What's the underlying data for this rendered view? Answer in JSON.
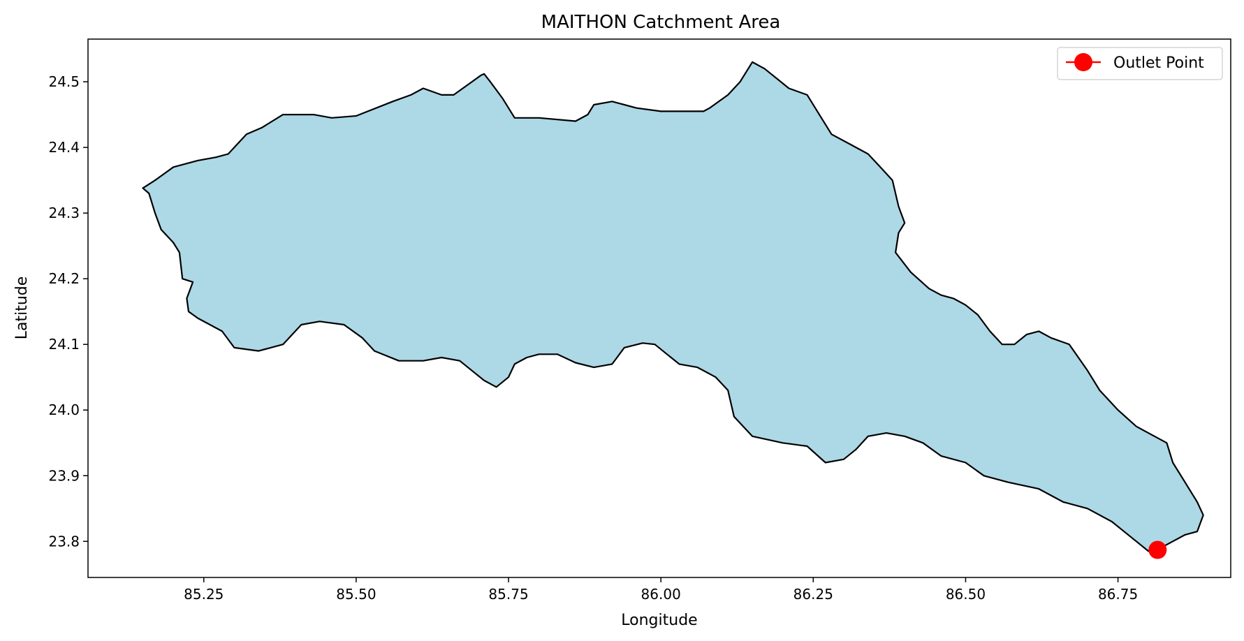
{
  "chart_data": {
    "type": "map",
    "title": "MAITHON Catchment Area",
    "xlabel": "Longitude",
    "ylabel": "Latitude",
    "xlim": [
      85.06,
      86.935
    ],
    "ylim": [
      23.745,
      24.565
    ],
    "x_ticks": [
      85.25,
      85.5,
      85.75,
      86.0,
      86.25,
      86.5,
      86.75
    ],
    "x_tick_labels": [
      "85.25",
      "85.50",
      "85.75",
      "86.00",
      "86.25",
      "86.50",
      "86.75"
    ],
    "y_ticks": [
      23.8,
      23.9,
      24.0,
      24.1,
      24.2,
      24.3,
      24.4,
      24.5
    ],
    "y_tick_labels": [
      "23.8",
      "23.9",
      "24.0",
      "24.1",
      "24.2",
      "24.3",
      "24.4",
      "24.5"
    ],
    "grid": false,
    "legend": {
      "position": "top-right",
      "entries": [
        {
          "label": "Outlet Point",
          "color": "#ff0000"
        }
      ]
    },
    "catchment": {
      "fill": "#add8e6",
      "stroke": "#000000",
      "boundary": [
        [
          85.15,
          24.338
        ],
        [
          85.17,
          24.35
        ],
        [
          85.2,
          24.37
        ],
        [
          85.24,
          24.38
        ],
        [
          85.27,
          24.385
        ],
        [
          85.29,
          24.39
        ],
        [
          85.32,
          24.42
        ],
        [
          85.345,
          24.43
        ],
        [
          85.38,
          24.45
        ],
        [
          85.43,
          24.45
        ],
        [
          85.46,
          24.445
        ],
        [
          85.5,
          24.448
        ],
        [
          85.56,
          24.47
        ],
        [
          85.59,
          24.48
        ],
        [
          85.61,
          24.49
        ],
        [
          85.64,
          24.48
        ],
        [
          85.66,
          24.48
        ],
        [
          85.69,
          24.5
        ],
        [
          85.705,
          24.51
        ],
        [
          85.71,
          24.512
        ],
        [
          85.72,
          24.5
        ],
        [
          85.74,
          24.475
        ],
        [
          85.76,
          24.445
        ],
        [
          85.8,
          24.445
        ],
        [
          85.86,
          24.44
        ],
        [
          85.88,
          24.45
        ],
        [
          85.89,
          24.465
        ],
        [
          85.92,
          24.47
        ],
        [
          85.96,
          24.46
        ],
        [
          86.0,
          24.455
        ],
        [
          86.04,
          24.455
        ],
        [
          86.07,
          24.455
        ],
        [
          86.08,
          24.46
        ],
        [
          86.11,
          24.48
        ],
        [
          86.13,
          24.5
        ],
        [
          86.15,
          24.53
        ],
        [
          86.17,
          24.52
        ],
        [
          86.19,
          24.505
        ],
        [
          86.21,
          24.49
        ],
        [
          86.24,
          24.48
        ],
        [
          86.26,
          24.45
        ],
        [
          86.28,
          24.42
        ],
        [
          86.31,
          24.405
        ],
        [
          86.34,
          24.39
        ],
        [
          86.36,
          24.37
        ],
        [
          86.38,
          24.35
        ],
        [
          86.39,
          24.31
        ],
        [
          86.4,
          24.285
        ],
        [
          86.39,
          24.27
        ],
        [
          86.385,
          24.24
        ],
        [
          86.41,
          24.21
        ],
        [
          86.44,
          24.185
        ],
        [
          86.46,
          24.175
        ],
        [
          86.48,
          24.17
        ],
        [
          86.5,
          24.16
        ],
        [
          86.52,
          24.145
        ],
        [
          86.54,
          24.12
        ],
        [
          86.56,
          24.1
        ],
        [
          86.58,
          24.1
        ],
        [
          86.6,
          24.115
        ],
        [
          86.62,
          24.12
        ],
        [
          86.64,
          24.11
        ],
        [
          86.67,
          24.1
        ],
        [
          86.7,
          24.06
        ],
        [
          86.72,
          24.03
        ],
        [
          86.75,
          24.0
        ],
        [
          86.78,
          23.975
        ],
        [
          86.81,
          23.96
        ],
        [
          86.83,
          23.95
        ],
        [
          86.84,
          23.92
        ],
        [
          86.86,
          23.89
        ],
        [
          86.88,
          23.86
        ],
        [
          86.89,
          23.84
        ],
        [
          86.88,
          23.815
        ],
        [
          86.86,
          23.81
        ],
        [
          86.84,
          23.8
        ],
        [
          86.82,
          23.79
        ],
        [
          86.8,
          23.785
        ],
        [
          86.78,
          23.8
        ],
        [
          86.76,
          23.815
        ],
        [
          86.74,
          23.83
        ],
        [
          86.7,
          23.85
        ],
        [
          86.66,
          23.86
        ],
        [
          86.62,
          23.88
        ],
        [
          86.57,
          23.89
        ],
        [
          86.53,
          23.9
        ],
        [
          86.5,
          23.92
        ],
        [
          86.46,
          23.93
        ],
        [
          86.43,
          23.95
        ],
        [
          86.4,
          23.96
        ],
        [
          86.37,
          23.965
        ],
        [
          86.34,
          23.96
        ],
        [
          86.32,
          23.94
        ],
        [
          86.3,
          23.925
        ],
        [
          86.27,
          23.92
        ],
        [
          86.24,
          23.945
        ],
        [
          86.2,
          23.95
        ],
        [
          86.15,
          23.96
        ],
        [
          86.12,
          23.99
        ],
        [
          86.11,
          24.03
        ],
        [
          86.09,
          24.05
        ],
        [
          86.06,
          24.065
        ],
        [
          86.03,
          24.07
        ],
        [
          86.01,
          24.085
        ],
        [
          85.99,
          24.1
        ],
        [
          85.97,
          24.102
        ],
        [
          85.94,
          24.095
        ],
        [
          85.92,
          24.07
        ],
        [
          85.89,
          24.065
        ],
        [
          85.86,
          24.072
        ],
        [
          85.83,
          24.085
        ],
        [
          85.8,
          24.085
        ],
        [
          85.78,
          24.08
        ],
        [
          85.76,
          24.07
        ],
        [
          85.75,
          24.05
        ],
        [
          85.73,
          24.035
        ],
        [
          85.71,
          24.045
        ],
        [
          85.69,
          24.06
        ],
        [
          85.67,
          24.075
        ],
        [
          85.64,
          24.08
        ],
        [
          85.61,
          24.075
        ],
        [
          85.57,
          24.075
        ],
        [
          85.53,
          24.09
        ],
        [
          85.51,
          24.11
        ],
        [
          85.48,
          24.13
        ],
        [
          85.44,
          24.135
        ],
        [
          85.41,
          24.13
        ],
        [
          85.38,
          24.1
        ],
        [
          85.34,
          24.09
        ],
        [
          85.3,
          24.095
        ],
        [
          85.28,
          24.12
        ],
        [
          85.24,
          24.14
        ],
        [
          85.225,
          24.15
        ],
        [
          85.222,
          24.17
        ],
        [
          85.232,
          24.195
        ],
        [
          85.215,
          24.2
        ],
        [
          85.21,
          24.24
        ],
        [
          85.2,
          24.255
        ],
        [
          85.18,
          24.275
        ],
        [
          85.17,
          24.3
        ],
        [
          85.16,
          24.33
        ]
      ]
    },
    "outlet_point": {
      "label": "Outlet Point",
      "lon": 86.815,
      "lat": 23.787,
      "color": "#ff0000"
    }
  }
}
